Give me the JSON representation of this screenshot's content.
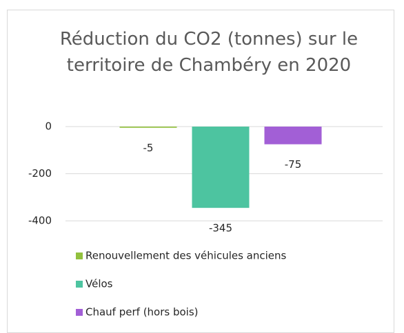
{
  "chart_data": {
    "type": "bar",
    "title": "Réduction du CO2 (tonnes) sur le territoire de Chambéry en 2020",
    "categories": [
      null
    ],
    "series": [
      {
        "name": "Renouvellement des véhicules anciens",
        "color": "#92c13e",
        "values": [
          -5
        ]
      },
      {
        "name": "Vélos",
        "color": "#4dc4a0",
        "values": [
          -345
        ]
      },
      {
        "name": "Chauf perf (hors bois)",
        "color": "#a25fd6",
        "values": [
          -75
        ]
      }
    ],
    "ylim": [
      -400,
      0
    ],
    "yticks": [
      0,
      -200,
      -400
    ],
    "grid": true,
    "legend": "bottom"
  }
}
